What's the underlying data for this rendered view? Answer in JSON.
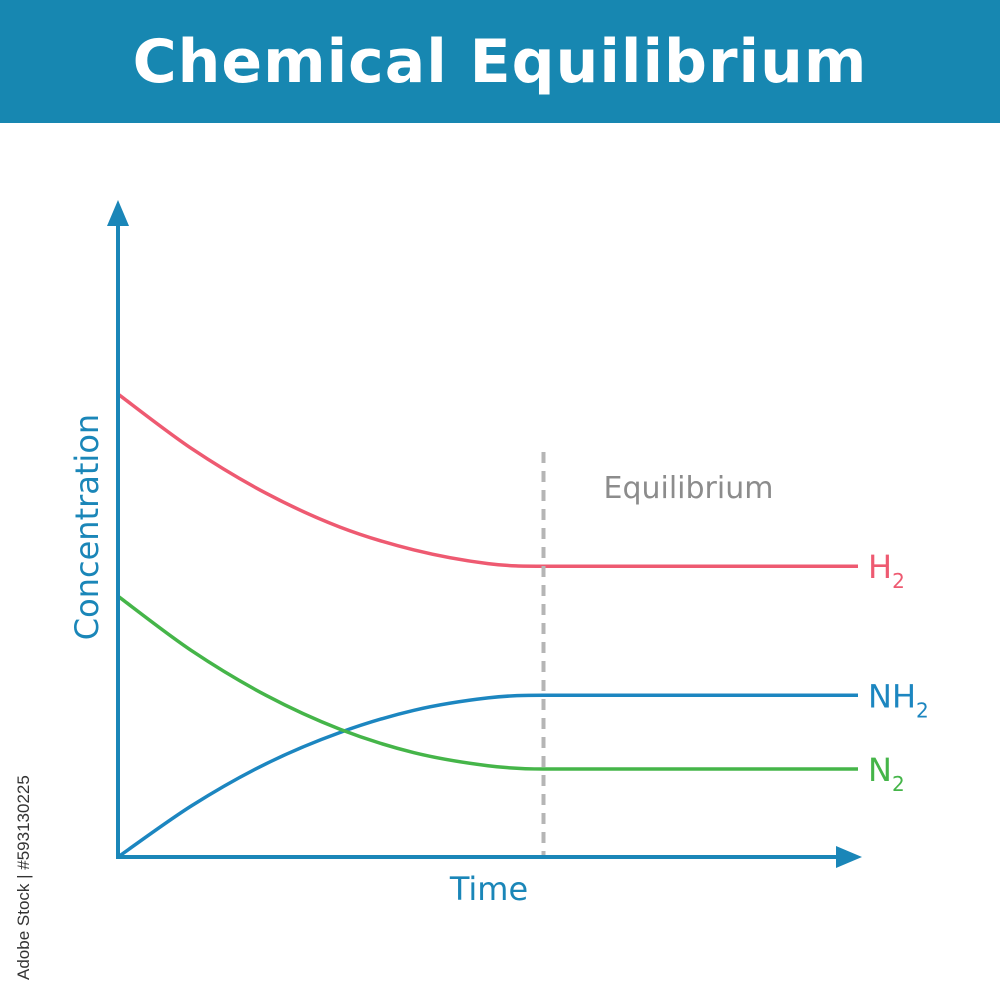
{
  "header": {
    "title": "Chemical Equilibrium",
    "background_color": "#1787b1"
  },
  "watermark": {
    "credit": "Adobe Stock | #593130225"
  },
  "chart_data": {
    "type": "line",
    "title": "Chemical Equilibrium",
    "xlabel": "Time",
    "ylabel": "Concentration",
    "xlim": [
      0,
      1
    ],
    "ylim": [
      0,
      1
    ],
    "grid": false,
    "axis_color": "#1a86b8",
    "annotation": {
      "label": "Equilibrium",
      "x": 0.575,
      "style": "dashed vertical line",
      "color": "#b5b5b5",
      "text_color": "#8c8c8c"
    },
    "x": [
      0,
      0.1,
      0.2,
      0.3,
      0.4,
      0.5,
      0.575,
      1.0
    ],
    "series": [
      {
        "name": "H",
        "subscript": "2",
        "color": "#ee5a71",
        "values": [
          0.71,
          0.626,
          0.558,
          0.506,
          0.471,
          0.45,
          0.446,
          0.446
        ]
      },
      {
        "name": "NH",
        "subscript": "2",
        "color": "#1c86c0",
        "values": [
          0,
          0.079,
          0.143,
          0.191,
          0.225,
          0.244,
          0.248,
          0.248
        ]
      },
      {
        "name": "N",
        "subscript": "2",
        "color": "#45b549",
        "values": [
          0.4,
          0.316,
          0.248,
          0.196,
          0.16,
          0.14,
          0.135,
          0.135
        ]
      }
    ]
  }
}
